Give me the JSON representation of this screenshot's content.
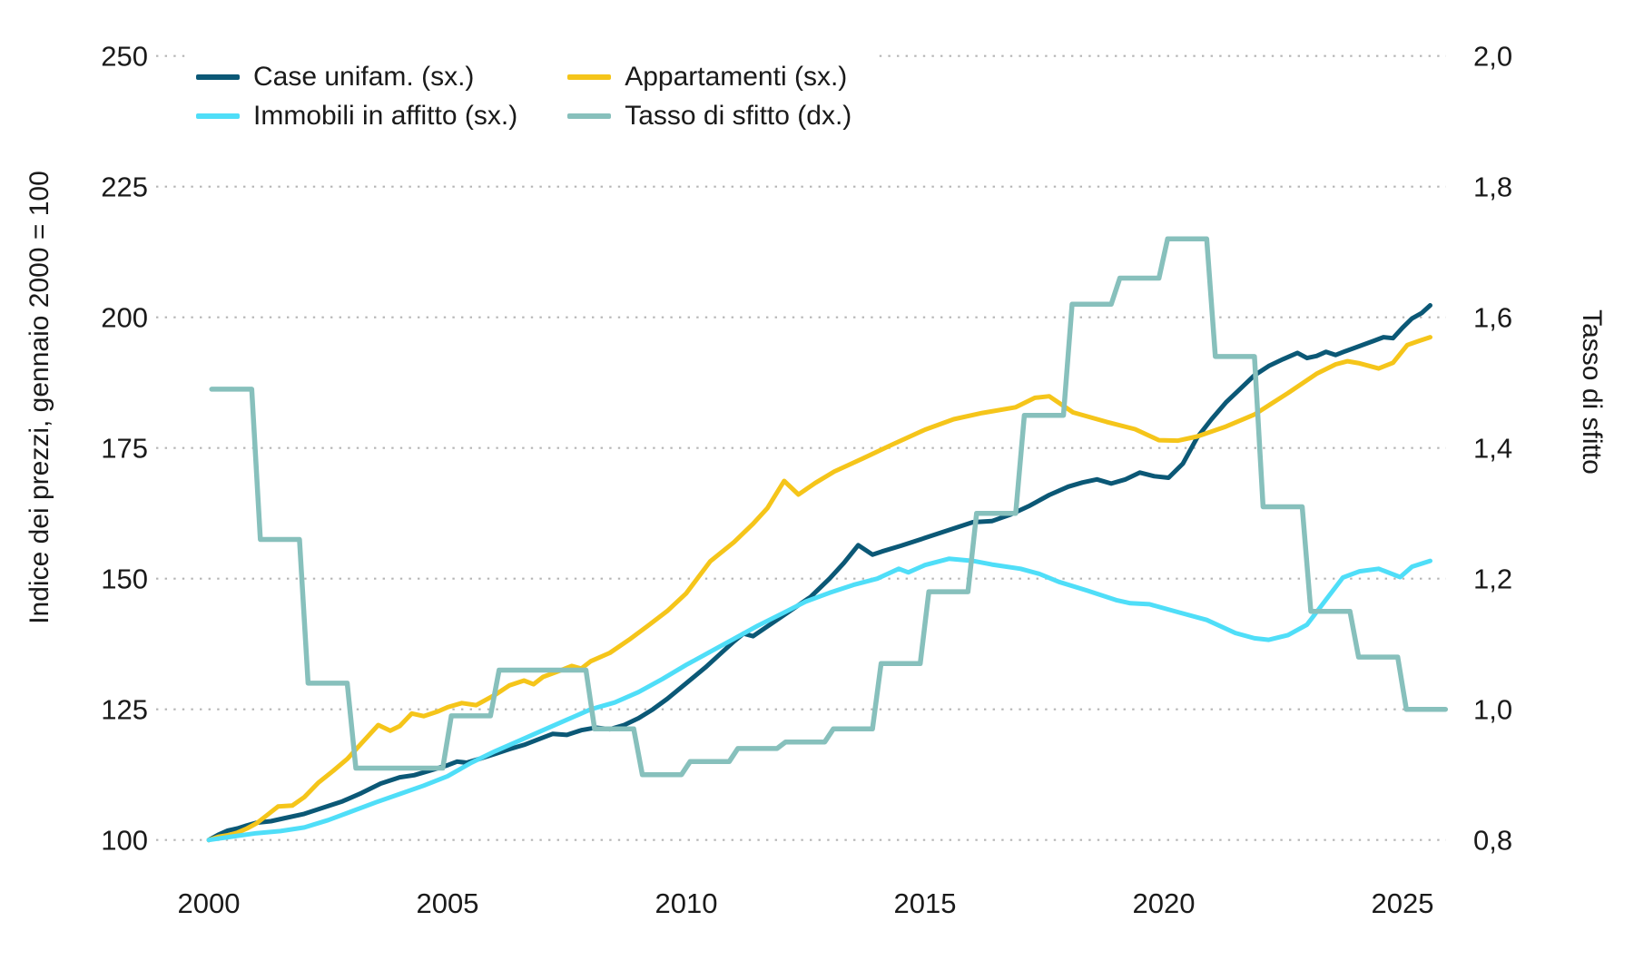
{
  "chart_data": {
    "type": "line",
    "title": "",
    "xlabel": "",
    "ylabel_left": "Indice dei prezzi, gennaio 2000 = 100",
    "ylabel_right": "Tasso di sfitto",
    "grid": "dotted-horizontal",
    "legend_position": "top-left",
    "x_range": [
      2000,
      2025.6
    ],
    "x_ticks": [
      2000,
      2005,
      2010,
      2015,
      2020,
      2025
    ],
    "left_axis": {
      "min": 100,
      "max": 250,
      "ticks": [
        100,
        125,
        150,
        175,
        200,
        225,
        250
      ]
    },
    "right_axis": {
      "min": 0.8,
      "max": 2.0,
      "ticks": [
        "0,8",
        "1,0",
        "1,2",
        "1,4",
        "1,6",
        "1,8",
        "2,0"
      ]
    },
    "series": [
      {
        "name": "Case unifam. (sx.)",
        "axis": "left",
        "type": "line",
        "color": "#0b5876",
        "points": [
          [
            2000.0,
            100
          ],
          [
            2000.2,
            101
          ],
          [
            2000.4,
            101.8
          ],
          [
            2000.6,
            102.2
          ],
          [
            2000.8,
            102.8
          ],
          [
            2001.0,
            103.3
          ],
          [
            2001.3,
            103.6
          ],
          [
            2001.6,
            104.2
          ],
          [
            2002.0,
            105.0
          ],
          [
            2002.4,
            106.2
          ],
          [
            2002.8,
            107.4
          ],
          [
            2003.2,
            109.0
          ],
          [
            2003.6,
            110.8
          ],
          [
            2004.0,
            112.0
          ],
          [
            2004.3,
            112.4
          ],
          [
            2004.6,
            113.2
          ],
          [
            2005.0,
            114.3
          ],
          [
            2005.2,
            115.0
          ],
          [
            2005.4,
            114.8
          ],
          [
            2005.7,
            115.6
          ],
          [
            2006.0,
            116.5
          ],
          [
            2006.3,
            117.4
          ],
          [
            2006.6,
            118.2
          ],
          [
            2007.0,
            119.6
          ],
          [
            2007.2,
            120.3
          ],
          [
            2007.5,
            120.1
          ],
          [
            2007.8,
            121.0
          ],
          [
            2008.1,
            121.5
          ],
          [
            2008.4,
            121.2
          ],
          [
            2008.7,
            122.0
          ],
          [
            2009.0,
            123.3
          ],
          [
            2009.3,
            125.0
          ],
          [
            2009.6,
            127.0
          ],
          [
            2010.0,
            130.0
          ],
          [
            2010.4,
            133.0
          ],
          [
            2010.7,
            135.5
          ],
          [
            2011.0,
            138.0
          ],
          [
            2011.2,
            139.5
          ],
          [
            2011.4,
            139.0
          ],
          [
            2011.8,
            141.5
          ],
          [
            2012.2,
            144.0
          ],
          [
            2012.6,
            146.5
          ],
          [
            2013.0,
            150.0
          ],
          [
            2013.3,
            153.0
          ],
          [
            2013.6,
            156.4
          ],
          [
            2013.9,
            154.6
          ],
          [
            2014.1,
            155.2
          ],
          [
            2014.5,
            156.3
          ],
          [
            2015.0,
            157.8
          ],
          [
            2015.5,
            159.3
          ],
          [
            2016.0,
            160.8
          ],
          [
            2016.4,
            161.0
          ],
          [
            2016.8,
            162.3
          ],
          [
            2017.2,
            164.0
          ],
          [
            2017.6,
            166.0
          ],
          [
            2018.0,
            167.6
          ],
          [
            2018.3,
            168.4
          ],
          [
            2018.6,
            169.0
          ],
          [
            2018.9,
            168.2
          ],
          [
            2019.2,
            169.0
          ],
          [
            2019.5,
            170.3
          ],
          [
            2019.8,
            169.6
          ],
          [
            2020.1,
            169.3
          ],
          [
            2020.4,
            172.0
          ],
          [
            2020.7,
            177.0
          ],
          [
            2021.0,
            180.5
          ],
          [
            2021.3,
            183.7
          ],
          [
            2021.6,
            186.3
          ],
          [
            2021.9,
            188.9
          ],
          [
            2022.2,
            190.7
          ],
          [
            2022.5,
            192.0
          ],
          [
            2022.8,
            193.2
          ],
          [
            2023.0,
            192.2
          ],
          [
            2023.2,
            192.6
          ],
          [
            2023.4,
            193.4
          ],
          [
            2023.6,
            192.8
          ],
          [
            2023.8,
            193.5
          ],
          [
            2024.1,
            194.5
          ],
          [
            2024.4,
            195.5
          ],
          [
            2024.6,
            196.2
          ],
          [
            2024.8,
            196.0
          ],
          [
            2025.0,
            198.0
          ],
          [
            2025.2,
            199.8
          ],
          [
            2025.4,
            200.8
          ],
          [
            2025.58,
            202.3
          ]
        ]
      },
      {
        "name": "Appartamenti (sx.)",
        "axis": "left",
        "type": "line",
        "color": "#f5c51a",
        "points": [
          [
            2000.0,
            100
          ],
          [
            2000.2,
            100.6
          ],
          [
            2000.4,
            100.9
          ],
          [
            2000.6,
            101.4
          ],
          [
            2000.8,
            102.2
          ],
          [
            2001.0,
            103.2
          ],
          [
            2001.2,
            104.6
          ],
          [
            2001.45,
            106.4
          ],
          [
            2001.75,
            106.6
          ],
          [
            2002.0,
            108.2
          ],
          [
            2002.3,
            111.0
          ],
          [
            2002.6,
            113.2
          ],
          [
            2002.9,
            115.5
          ],
          [
            2003.2,
            118.5
          ],
          [
            2003.55,
            122.0
          ],
          [
            2003.8,
            120.9
          ],
          [
            2004.0,
            121.8
          ],
          [
            2004.25,
            124.2
          ],
          [
            2004.5,
            123.7
          ],
          [
            2004.8,
            124.6
          ],
          [
            2005.0,
            125.4
          ],
          [
            2005.3,
            126.2
          ],
          [
            2005.6,
            125.8
          ],
          [
            2006.0,
            127.8
          ],
          [
            2006.3,
            129.6
          ],
          [
            2006.6,
            130.5
          ],
          [
            2006.8,
            129.8
          ],
          [
            2007.0,
            131.2
          ],
          [
            2007.3,
            132.2
          ],
          [
            2007.6,
            133.3
          ],
          [
            2007.8,
            132.8
          ],
          [
            2008.0,
            134.2
          ],
          [
            2008.4,
            135.8
          ],
          [
            2008.8,
            138.3
          ],
          [
            2009.2,
            141.0
          ],
          [
            2009.6,
            143.8
          ],
          [
            2010.0,
            147.2
          ],
          [
            2010.5,
            153.3
          ],
          [
            2011.0,
            157.0
          ],
          [
            2011.4,
            160.5
          ],
          [
            2011.7,
            163.5
          ],
          [
            2012.05,
            168.7
          ],
          [
            2012.35,
            166.1
          ],
          [
            2012.7,
            168.3
          ],
          [
            2013.1,
            170.5
          ],
          [
            2013.7,
            173.0
          ],
          [
            2014.3,
            175.6
          ],
          [
            2015.0,
            178.5
          ],
          [
            2015.6,
            180.5
          ],
          [
            2016.2,
            181.7
          ],
          [
            2016.9,
            182.8
          ],
          [
            2017.3,
            184.6
          ],
          [
            2017.6,
            184.9
          ],
          [
            2018.1,
            181.8
          ],
          [
            2018.8,
            180.0
          ],
          [
            2019.4,
            178.6
          ],
          [
            2019.9,
            176.5
          ],
          [
            2020.3,
            176.4
          ],
          [
            2020.7,
            177.2
          ],
          [
            2021.3,
            179.1
          ],
          [
            2021.9,
            181.4
          ],
          [
            2022.6,
            185.5
          ],
          [
            2023.2,
            189.2
          ],
          [
            2023.6,
            191.0
          ],
          [
            2023.85,
            191.6
          ],
          [
            2024.1,
            191.2
          ],
          [
            2024.5,
            190.2
          ],
          [
            2024.8,
            191.3
          ],
          [
            2025.1,
            194.7
          ],
          [
            2025.35,
            195.5
          ],
          [
            2025.58,
            196.2
          ]
        ]
      },
      {
        "name": "Immobili in affitto (sx.)",
        "axis": "left",
        "type": "line",
        "color": "#4fdef8",
        "points": [
          [
            2000.0,
            100
          ],
          [
            2000.3,
            100.4
          ],
          [
            2000.6,
            100.8
          ],
          [
            2001.0,
            101.3
          ],
          [
            2001.5,
            101.7
          ],
          [
            2002.0,
            102.4
          ],
          [
            2002.5,
            103.8
          ],
          [
            2003.0,
            105.5
          ],
          [
            2003.5,
            107.2
          ],
          [
            2004.0,
            108.8
          ],
          [
            2004.5,
            110.4
          ],
          [
            2005.0,
            112.2
          ],
          [
            2005.5,
            114.8
          ],
          [
            2006.0,
            117.0
          ],
          [
            2006.5,
            119.0
          ],
          [
            2007.0,
            121.0
          ],
          [
            2007.5,
            123.0
          ],
          [
            2008.0,
            125.0
          ],
          [
            2008.5,
            126.3
          ],
          [
            2009.0,
            128.3
          ],
          [
            2009.5,
            130.8
          ],
          [
            2010.0,
            133.5
          ],
          [
            2010.5,
            136.0
          ],
          [
            2011.0,
            138.5
          ],
          [
            2011.5,
            141.0
          ],
          [
            2012.0,
            143.3
          ],
          [
            2012.5,
            145.6
          ],
          [
            2013.0,
            147.3
          ],
          [
            2013.5,
            148.8
          ],
          [
            2014.0,
            150.0
          ],
          [
            2014.45,
            151.9
          ],
          [
            2014.65,
            151.2
          ],
          [
            2015.0,
            152.6
          ],
          [
            2015.5,
            153.8
          ],
          [
            2016.0,
            153.4
          ],
          [
            2016.4,
            152.7
          ],
          [
            2017.0,
            151.9
          ],
          [
            2017.4,
            150.9
          ],
          [
            2017.8,
            149.4
          ],
          [
            2018.4,
            147.7
          ],
          [
            2019.0,
            145.9
          ],
          [
            2019.3,
            145.3
          ],
          [
            2019.7,
            145.1
          ],
          [
            2020.3,
            143.6
          ],
          [
            2020.9,
            142.1
          ],
          [
            2021.5,
            139.6
          ],
          [
            2021.9,
            138.6
          ],
          [
            2022.2,
            138.3
          ],
          [
            2022.6,
            139.2
          ],
          [
            2023.0,
            141.2
          ],
          [
            2023.4,
            146.0
          ],
          [
            2023.75,
            150.2
          ],
          [
            2024.1,
            151.4
          ],
          [
            2024.5,
            151.9
          ],
          [
            2024.95,
            150.3
          ],
          [
            2025.2,
            152.3
          ],
          [
            2025.58,
            153.4
          ]
        ]
      },
      {
        "name": "Tasso di sfitto (dx.)",
        "axis": "right",
        "type": "step",
        "color": "#87c0bc",
        "points": [
          [
            2000,
            1.49
          ],
          [
            2001,
            1.26
          ],
          [
            2002,
            1.04
          ],
          [
            2003,
            0.91
          ],
          [
            2004,
            0.91
          ],
          [
            2005,
            0.99
          ],
          [
            2006,
            1.06
          ],
          [
            2007,
            1.06
          ],
          [
            2008,
            0.97
          ],
          [
            2009,
            0.9
          ],
          [
            2010,
            0.92
          ],
          [
            2011,
            0.94
          ],
          [
            2012,
            0.95
          ],
          [
            2013,
            0.97
          ],
          [
            2014,
            1.07
          ],
          [
            2015,
            1.18
          ],
          [
            2016,
            1.3
          ],
          [
            2017,
            1.45
          ],
          [
            2018,
            1.62
          ],
          [
            2019,
            1.66
          ],
          [
            2020,
            1.72
          ],
          [
            2021,
            1.54
          ],
          [
            2022,
            1.31
          ],
          [
            2023,
            1.15
          ],
          [
            2024,
            1.08
          ],
          [
            2025,
            1.0
          ]
        ]
      }
    ]
  }
}
